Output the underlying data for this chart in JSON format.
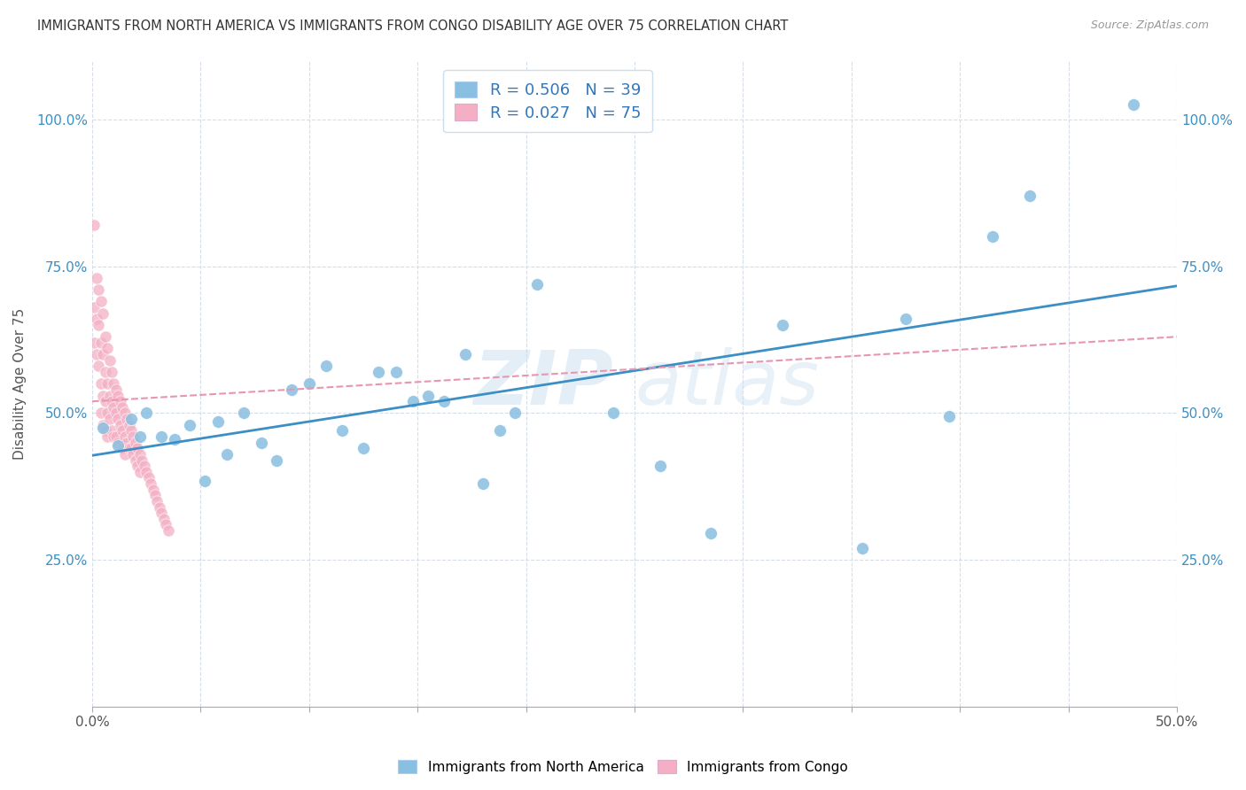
{
  "title": "IMMIGRANTS FROM NORTH AMERICA VS IMMIGRANTS FROM CONGO DISABILITY AGE OVER 75 CORRELATION CHART",
  "source": "Source: ZipAtlas.com",
  "ylabel": "Disability Age Over 75",
  "xlabel_label_blue": "Immigrants from North America",
  "xlabel_label_pink": "Immigrants from Congo",
  "xmin": 0.0,
  "xmax": 0.5,
  "ymin": 0.0,
  "ymax": 1.1,
  "xtick_labeled": [
    0.0,
    0.5
  ],
  "xtick_labeled_labels": [
    "0.0%",
    "50.0%"
  ],
  "xtick_minor": [
    0.05,
    0.1,
    0.15,
    0.2,
    0.25,
    0.3,
    0.35,
    0.4,
    0.45
  ],
  "yticks": [
    0.0,
    0.25,
    0.5,
    0.75,
    1.0
  ],
  "ytick_labels_left": [
    "",
    "25.0%",
    "50.0%",
    "75.0%",
    "100.0%"
  ],
  "ytick_labels_right": [
    "",
    "25.0%",
    "50.0%",
    "75.0%",
    "100.0%"
  ],
  "blue_color": "#89bfe0",
  "pink_color": "#f4afc4",
  "blue_line_color": "#3b8fc4",
  "pink_line_color": "#e896b0",
  "R_blue": 0.506,
  "N_blue": 39,
  "R_pink": 0.027,
  "N_pink": 75,
  "blue_scatter_x": [
    0.005,
    0.012,
    0.018,
    0.022,
    0.025,
    0.032,
    0.038,
    0.045,
    0.052,
    0.058,
    0.062,
    0.07,
    0.078,
    0.085,
    0.092,
    0.1,
    0.108,
    0.115,
    0.125,
    0.132,
    0.14,
    0.148,
    0.155,
    0.162,
    0.172,
    0.18,
    0.188,
    0.195,
    0.205,
    0.24,
    0.262,
    0.285,
    0.318,
    0.355,
    0.375,
    0.395,
    0.415,
    0.432,
    0.48
  ],
  "blue_scatter_y": [
    0.475,
    0.445,
    0.49,
    0.46,
    0.5,
    0.46,
    0.455,
    0.48,
    0.385,
    0.485,
    0.43,
    0.5,
    0.45,
    0.42,
    0.54,
    0.55,
    0.58,
    0.47,
    0.44,
    0.57,
    0.57,
    0.52,
    0.53,
    0.52,
    0.6,
    0.38,
    0.47,
    0.5,
    0.72,
    0.5,
    0.41,
    0.295,
    0.65,
    0.27,
    0.66,
    0.495,
    0.8,
    0.87,
    1.025
  ],
  "pink_scatter_x": [
    0.001,
    0.001,
    0.001,
    0.002,
    0.002,
    0.002,
    0.003,
    0.003,
    0.003,
    0.004,
    0.004,
    0.004,
    0.004,
    0.005,
    0.005,
    0.005,
    0.005,
    0.006,
    0.006,
    0.006,
    0.006,
    0.007,
    0.007,
    0.007,
    0.007,
    0.008,
    0.008,
    0.008,
    0.009,
    0.009,
    0.009,
    0.01,
    0.01,
    0.01,
    0.011,
    0.011,
    0.011,
    0.012,
    0.012,
    0.012,
    0.013,
    0.013,
    0.014,
    0.014,
    0.014,
    0.015,
    0.015,
    0.015,
    0.016,
    0.016,
    0.017,
    0.017,
    0.018,
    0.018,
    0.019,
    0.019,
    0.02,
    0.02,
    0.021,
    0.021,
    0.022,
    0.022,
    0.023,
    0.024,
    0.025,
    0.026,
    0.027,
    0.028,
    0.029,
    0.03,
    0.031,
    0.032,
    0.033,
    0.034,
    0.035
  ],
  "pink_scatter_y": [
    0.82,
    0.68,
    0.62,
    0.73,
    0.66,
    0.6,
    0.71,
    0.65,
    0.58,
    0.69,
    0.62,
    0.55,
    0.5,
    0.67,
    0.6,
    0.53,
    0.48,
    0.63,
    0.57,
    0.52,
    0.47,
    0.61,
    0.55,
    0.5,
    0.46,
    0.59,
    0.53,
    0.49,
    0.57,
    0.52,
    0.47,
    0.55,
    0.51,
    0.46,
    0.54,
    0.5,
    0.46,
    0.53,
    0.49,
    0.45,
    0.52,
    0.48,
    0.51,
    0.47,
    0.44,
    0.5,
    0.46,
    0.43,
    0.49,
    0.45,
    0.48,
    0.44,
    0.47,
    0.44,
    0.46,
    0.43,
    0.45,
    0.42,
    0.44,
    0.41,
    0.43,
    0.4,
    0.42,
    0.41,
    0.4,
    0.39,
    0.38,
    0.37,
    0.36,
    0.35,
    0.34,
    0.33,
    0.32,
    0.31,
    0.3
  ],
  "watermark_zip": "ZIP",
  "watermark_atlas": "atlas",
  "background_color": "#ffffff",
  "grid_color": "#d4dde8"
}
